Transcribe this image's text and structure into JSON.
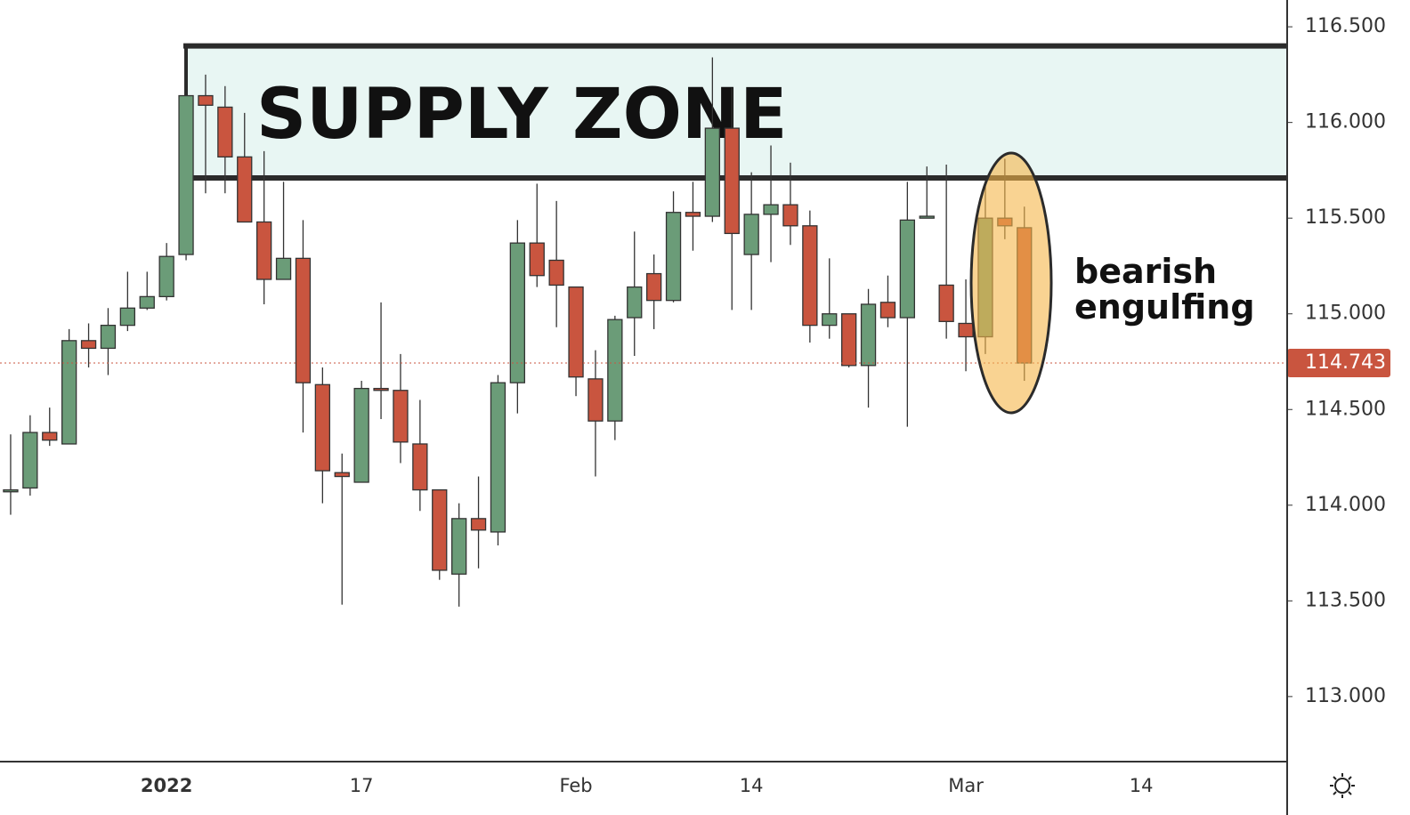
{
  "chart_data": {
    "type": "candlestick",
    "categories": [
      null,
      null,
      null,
      null,
      null,
      null,
      null,
      null,
      "2022",
      null,
      null,
      null,
      null,
      null,
      null,
      null,
      null,
      null,
      "17",
      null,
      null,
      null,
      null,
      null,
      null,
      null,
      null,
      null,
      null,
      "Feb",
      null,
      null,
      null,
      null,
      null,
      null,
      null,
      null,
      "14",
      null,
      null,
      null,
      null,
      null,
      null,
      null,
      null,
      null,
      null,
      "Mar",
      null,
      null,
      null,
      null,
      null,
      null,
      null,
      null,
      "14",
      null,
      null,
      null,
      null,
      null,
      null
    ],
    "open": [
      114.07,
      114.09,
      114.38,
      114.32,
      114.86,
      114.82,
      114.94,
      115.03,
      115.09,
      115.31,
      116.14,
      116.08,
      115.82,
      115.48,
      115.18,
      115.29,
      114.63,
      114.17,
      114.12,
      114.61,
      114.6,
      114.32,
      114.08,
      113.64,
      113.93,
      113.86,
      114.64,
      115.37,
      115.28,
      115.14,
      114.66,
      114.44,
      114.98,
      115.21,
      115.07,
      115.53,
      115.51,
      115.97,
      115.31,
      115.52,
      115.57,
      115.46,
      114.94,
      115.0,
      114.73,
      115.06,
      114.98,
      115.5,
      115.15,
      114.95,
      114.88,
      115.5,
      115.45,
      null,
      null,
      null,
      null,
      null,
      null,
      null,
      null,
      null,
      null,
      null,
      null
    ],
    "high": [
      114.37,
      114.47,
      114.51,
      114.92,
      114.95,
      115.03,
      115.22,
      115.22,
      115.37,
      116.14,
      116.25,
      116.19,
      116.05,
      115.85,
      115.69,
      115.49,
      114.72,
      114.27,
      114.65,
      115.06,
      114.79,
      114.55,
      114.08,
      114.01,
      114.15,
      114.68,
      115.49,
      115.68,
      115.59,
      115.14,
      114.81,
      114.99,
      115.43,
      115.31,
      115.64,
      115.69,
      116.34,
      116.18,
      115.74,
      115.88,
      115.79,
      115.54,
      115.29,
      115.0,
      115.13,
      115.2,
      115.69,
      115.77,
      115.78,
      115.18,
      115.68,
      115.81,
      115.56,
      null,
      null,
      null,
      null,
      null,
      null,
      null,
      null,
      null,
      null,
      null,
      null
    ],
    "low": [
      113.95,
      114.05,
      114.31,
      114.32,
      114.72,
      114.68,
      114.91,
      115.02,
      115.07,
      115.28,
      115.63,
      115.63,
      115.48,
      115.05,
      115.18,
      114.38,
      114.01,
      113.48,
      114.12,
      114.45,
      114.22,
      113.97,
      113.61,
      113.47,
      113.67,
      113.79,
      114.48,
      115.14,
      114.93,
      114.57,
      114.15,
      114.34,
      114.78,
      114.92,
      115.06,
      115.33,
      115.48,
      115.02,
      115.02,
      115.27,
      115.36,
      114.85,
      114.87,
      114.72,
      114.51,
      114.93,
      114.41,
      115.5,
      114.87,
      114.7,
      114.79,
      115.39,
      114.65,
      null,
      null,
      null,
      null,
      null,
      null,
      null,
      null,
      null,
      null,
      null,
      null
    ],
    "close": [
      114.08,
      114.38,
      114.34,
      114.86,
      114.82,
      114.94,
      115.03,
      115.09,
      115.3,
      116.14,
      116.09,
      115.82,
      115.48,
      115.18,
      115.29,
      114.64,
      114.18,
      114.15,
      114.61,
      114.6,
      114.33,
      114.08,
      113.66,
      113.93,
      113.87,
      114.64,
      115.37,
      115.2,
      115.15,
      114.67,
      114.44,
      114.97,
      115.14,
      115.07,
      115.53,
      115.51,
      115.97,
      115.42,
      115.52,
      115.57,
      115.46,
      114.94,
      115.0,
      114.73,
      115.05,
      114.98,
      115.49,
      115.51,
      114.96,
      114.88,
      115.5,
      115.46,
      114.743,
      null,
      null,
      null,
      null,
      null,
      null,
      null,
      null,
      null,
      null,
      null,
      null
    ],
    "up_color": "#6b9c78",
    "down_color": "#c9553f",
    "ylim": [
      112.66,
      116.64
    ],
    "yticks": [
      {
        "value": 113,
        "label": "113.000"
      },
      {
        "value": 113.5,
        "label": "113.500"
      },
      {
        "value": 114,
        "label": "114.000"
      },
      {
        "value": 114.5,
        "label": "114.500"
      },
      {
        "value": 115,
        "label": "115.000"
      },
      {
        "value": 115.5,
        "label": "115.500"
      },
      {
        "value": 116,
        "label": "116.000"
      },
      {
        "value": 116.5,
        "label": "116.500"
      }
    ],
    "last_price": 114.743,
    "last_price_color": "#c9553f",
    "zone": {
      "label": "SUPPLY ZONE",
      "top": 116.4,
      "bottom": 115.71,
      "color": "#e8f6f3"
    },
    "annotation": [
      "bearish",
      "engulfing"
    ]
  }
}
